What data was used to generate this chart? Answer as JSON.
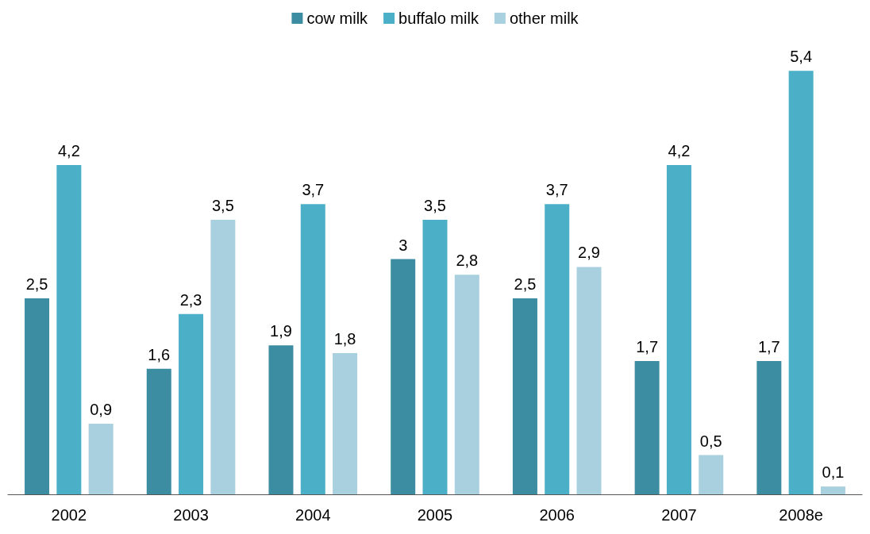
{
  "chart_data": {
    "type": "bar",
    "categories": [
      "2002",
      "2003",
      "2004",
      "2005",
      "2006",
      "2007",
      "2008e"
    ],
    "series": [
      {
        "name": "cow milk",
        "color": "#3d8da2",
        "values": [
          2.5,
          1.6,
          1.9,
          3,
          2.5,
          1.7,
          1.7
        ],
        "value_labels": [
          "2,5",
          "1,6",
          "1,9",
          "3",
          "2,5",
          "1,7",
          "1,7"
        ]
      },
      {
        "name": "buffalo milk",
        "color": "#4bafc7",
        "values": [
          4.2,
          2.3,
          3.7,
          3.5,
          3.7,
          4.2,
          5.4
        ],
        "value_labels": [
          "4,2",
          "2,3",
          "3,7",
          "3,5",
          "3,7",
          "4,2",
          "5,4"
        ]
      },
      {
        "name": "other milk",
        "color": "#a9d0de",
        "values": [
          0.9,
          3.5,
          1.8,
          2.8,
          2.9,
          0.5,
          0.1
        ],
        "value_labels": [
          "0,9",
          "3,5",
          "1,8",
          "2,8",
          "2,9",
          "0,5",
          "0,1"
        ]
      }
    ],
    "legend": "top"
  }
}
